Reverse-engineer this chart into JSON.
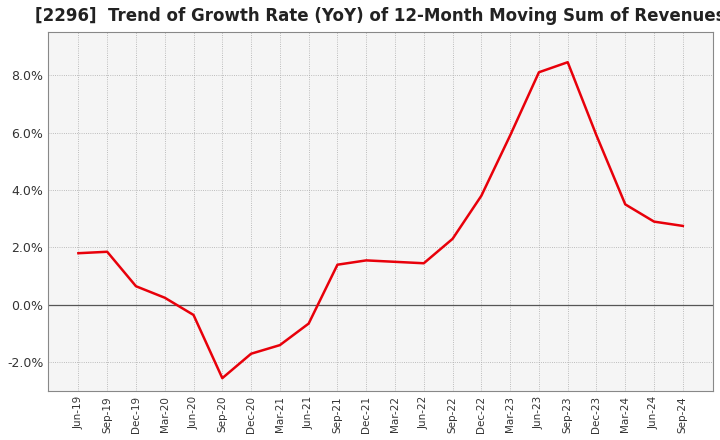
{
  "title": "[2296]  Trend of Growth Rate (YoY) of 12-Month Moving Sum of Revenues",
  "title_fontsize": 12,
  "line_color": "#e8000a",
  "background_color": "#ffffff",
  "grid_color": "#aaaaaa",
  "plot_bg_color": "#f5f5f5",
  "x_labels": [
    "Jun-19",
    "Sep-19",
    "Dec-19",
    "Mar-20",
    "Jun-20",
    "Sep-20",
    "Dec-20",
    "Mar-21",
    "Jun-21",
    "Sep-21",
    "Dec-21",
    "Mar-22",
    "Jun-22",
    "Sep-22",
    "Dec-22",
    "Mar-23",
    "Jun-23",
    "Sep-23",
    "Dec-23",
    "Mar-24",
    "Jun-24",
    "Sep-24"
  ],
  "y_values": [
    1.8,
    1.85,
    0.65,
    0.25,
    -0.35,
    -2.55,
    -1.7,
    -1.4,
    -0.65,
    1.4,
    1.55,
    1.5,
    1.45,
    2.3,
    3.8,
    5.9,
    8.1,
    8.45,
    5.9,
    3.5,
    2.9,
    2.75
  ],
  "ylim": [
    -3.0,
    9.5
  ],
  "yticks": [
    -2.0,
    0.0,
    2.0,
    4.0,
    6.0,
    8.0
  ]
}
